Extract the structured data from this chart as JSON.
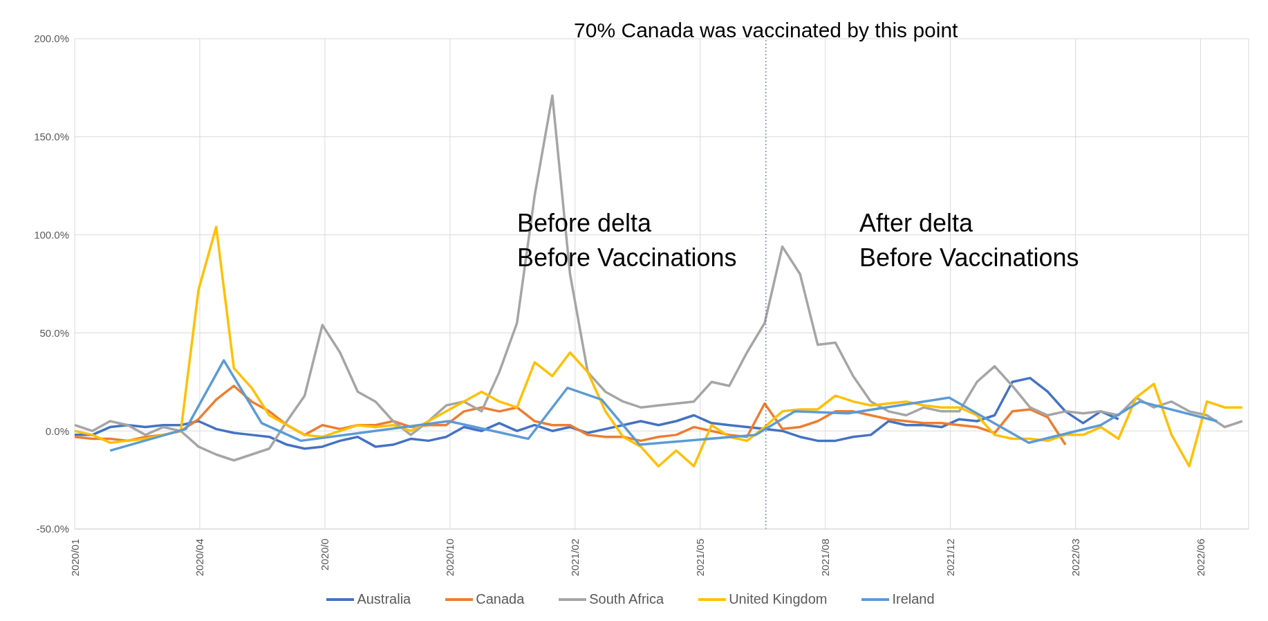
{
  "chart_data": {
    "type": "line",
    "x": [
      "2020-01-08",
      "2020-01-22",
      "2020-02-05",
      "2020-02-19",
      "2020-03-04",
      "2020-03-18",
      "2020-04-01",
      "2020-04-15",
      "2020-04-29",
      "2020-05-13",
      "2020-05-27",
      "2020-06-10",
      "2020-06-24",
      "2020-07-08",
      "2020-07-22",
      "2020-08-05",
      "2020-08-19",
      "2020-09-02",
      "2020-09-16",
      "2020-09-30",
      "2020-10-14",
      "2020-10-28",
      "2020-11-11",
      "2020-11-25",
      "2020-12-09",
      "2020-12-23",
      "2021-01-06",
      "2021-01-20",
      "2021-02-03",
      "2021-02-17",
      "2021-03-03",
      "2021-03-17",
      "2021-03-31",
      "2021-04-14",
      "2021-04-28",
      "2021-05-12",
      "2021-05-26",
      "2021-06-09",
      "2021-06-23",
      "2021-07-07",
      "2021-07-21",
      "2021-08-04",
      "2021-08-18",
      "2021-09-01",
      "2021-09-15",
      "2021-09-29",
      "2021-10-13",
      "2021-10-27",
      "2021-11-10",
      "2021-11-24",
      "2021-12-08",
      "2021-12-22",
      "2022-01-05",
      "2022-01-19",
      "2022-02-02",
      "2022-02-16",
      "2022-03-02",
      "2022-03-16",
      "2022-03-30",
      "2022-04-13",
      "2022-04-27",
      "2022-05-11",
      "2022-05-25",
      "2022-06-08",
      "2022-06-22",
      "2022-07-06",
      "2022-07-20"
    ],
    "series": [
      {
        "name": "Australia",
        "color": "#4472c4",
        "values": [
          -2,
          -2,
          2,
          3,
          2,
          3,
          3,
          5,
          1,
          -1,
          -2,
          -3,
          -7,
          -9,
          -8,
          -5,
          -3,
          -8,
          -7,
          -4,
          -5,
          -3,
          2,
          0,
          4,
          0,
          3,
          0,
          2,
          -1,
          1,
          3,
          5,
          3,
          5,
          8,
          4,
          3,
          2,
          1,
          0,
          -3,
          -5,
          -5,
          -3,
          -2,
          5,
          3,
          3,
          2,
          6,
          5,
          8,
          25,
          27,
          20,
          10,
          4,
          10,
          6,
          null,
          null,
          null,
          null,
          null,
          null,
          null
        ]
      },
      {
        "name": "Canada",
        "color": "#ed7d31",
        "values": [
          -3,
          -4,
          -4,
          -5,
          -3,
          -2,
          0,
          6,
          16,
          23,
          15,
          10,
          3,
          -2,
          3,
          1,
          3,
          3,
          5,
          2,
          3,
          3,
          10,
          12,
          10,
          12,
          5,
          3,
          3,
          -2,
          -3,
          -3,
          -5,
          -3,
          -2,
          2,
          0,
          -2,
          -3,
          14,
          1,
          2,
          5,
          10,
          10,
          8,
          6,
          5,
          4,
          4,
          3,
          2,
          -1,
          10,
          11,
          7,
          -7,
          null,
          null,
          null,
          null,
          null,
          null,
          null,
          null,
          null,
          null
        ]
      },
      {
        "name": "South Africa",
        "color": "#a5a5a5",
        "values": [
          3,
          0,
          5,
          3,
          -2,
          2,
          0,
          -8,
          -12,
          -15,
          -12,
          -9,
          5,
          18,
          54,
          40,
          20,
          15,
          5,
          -2,
          5,
          13,
          15,
          10,
          30,
          55,
          120,
          171,
          80,
          30,
          20,
          15,
          12,
          13,
          14,
          15,
          25,
          23,
          40,
          55,
          94,
          80,
          44,
          45,
          28,
          15,
          10,
          8,
          12,
          10,
          10,
          25,
          33,
          23,
          12,
          8,
          10,
          9,
          10,
          8,
          17,
          12,
          15,
          10,
          8,
          2,
          5
        ]
      },
      {
        "name": "United Kingdom",
        "color": "#ffc000",
        "values": [
          0,
          -2,
          -6,
          -5,
          -4,
          -2,
          0,
          72,
          104,
          32,
          22,
          8,
          3,
          -2,
          -3,
          0,
          3,
          2,
          3,
          0,
          5,
          10,
          15,
          20,
          15,
          12,
          35,
          28,
          40,
          30,
          10,
          -3,
          -8,
          -18,
          -10,
          -18,
          3,
          -3,
          -5,
          2,
          10,
          11,
          11,
          18,
          15,
          13,
          14,
          15,
          13,
          12,
          12,
          8,
          -2,
          -4,
          -4,
          -5,
          -2,
          -2,
          2,
          -4,
          17,
          24,
          -2,
          -18,
          15,
          12,
          12
        ]
      },
      {
        "name": "Ireland",
        "color": "#5b9bd5",
        "x": [
          "2020-02-05",
          "2020-04-05",
          "2020-05-05",
          "2020-06-04",
          "2020-07-05",
          "2020-10-30",
          "2021-01-01",
          "2021-02-01",
          "2021-02-28",
          "2021-03-30",
          "2021-06-30",
          "2021-07-31",
          "2021-09-11",
          "2021-11-30",
          "2022-02-01",
          "2022-03-30",
          "2022-04-30",
          "2022-06-30"
        ],
        "values": [
          -10,
          1,
          36,
          4,
          -5,
          5,
          -4,
          22,
          16,
          -7,
          -2,
          10,
          9,
          17,
          -6,
          3,
          15,
          5
        ]
      }
    ],
    "xlim": [
      "2020-01-08",
      "2022-07-25"
    ],
    "xticks": [
      {
        "value": "2020-01-08",
        "label": "2020/01"
      },
      {
        "value": "2020-04-16",
        "label": "2020/04"
      },
      {
        "value": "2020-07-24",
        "label": "2020/0"
      },
      {
        "value": "2020-10-31",
        "label": "2020/10"
      },
      {
        "value": "2021-02-07",
        "label": "2021/02"
      },
      {
        "value": "2021-05-17",
        "label": "2021/05"
      },
      {
        "value": "2021-08-24",
        "label": "2021/08"
      },
      {
        "value": "2021-12-01",
        "label": "2021/12"
      },
      {
        "value": "2022-03-10",
        "label": "2022/03"
      },
      {
        "value": "2022-06-17",
        "label": "2022/06"
      }
    ],
    "ylim": [
      -50,
      200
    ],
    "yticks": [
      {
        "value": -50,
        "label": "-50.0%"
      },
      {
        "value": 0,
        "label": "0.0%"
      },
      {
        "value": 50,
        "label": "50.0%"
      },
      {
        "value": 100,
        "label": "100.0%"
      },
      {
        "value": 150,
        "label": "150.0%"
      },
      {
        "value": 200,
        "label": "200.0%"
      }
    ],
    "ref_lines": [
      {
        "axis": "x",
        "value": "2021-07-08",
        "label": "70% Canada was vaccinated by this point",
        "color": "#4472c4",
        "line_style": "dotted"
      }
    ],
    "annotations": [
      "Before delta\nBefore Vaccinations",
      "After delta\nBefore Vaccinations"
    ],
    "grid": true,
    "legend": "bottom"
  }
}
